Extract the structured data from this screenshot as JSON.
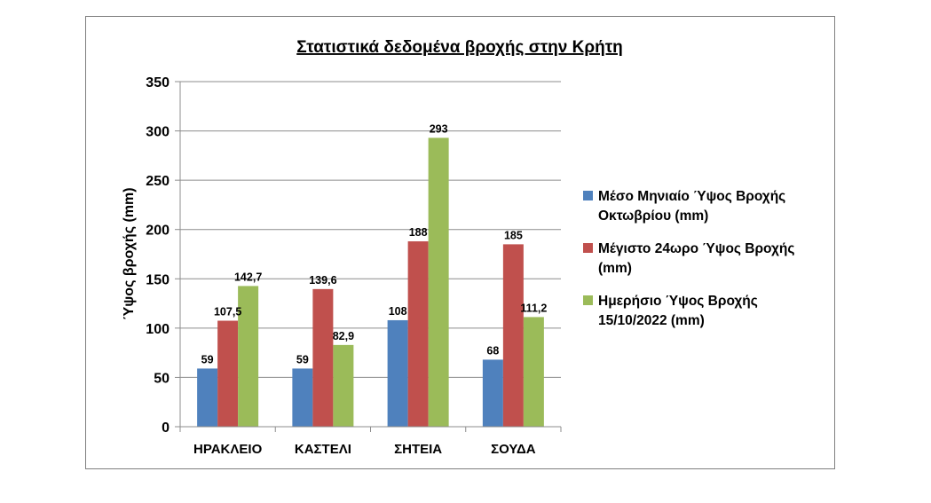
{
  "chart_data": {
    "type": "bar",
    "title": "Στατιστικά δεδομένα βροχής στην Κρήτη",
    "ylabel": "Ύψος βροχής (mm)",
    "xlabel": "",
    "ylim": [
      0,
      350
    ],
    "yticks": [
      0,
      50,
      100,
      150,
      200,
      250,
      300,
      350
    ],
    "grid": true,
    "legend_position": "right",
    "categories": [
      "ΗΡΑΚΛΕΙΟ",
      "ΚΑΣΤΕΛΙ",
      "ΣΗΤΕΙΑ",
      "ΣΟΥΔΑ"
    ],
    "series": [
      {
        "name": "Μέσο Μηνιαίο Ύψος Βροχής Οκτωβρίου (mm)",
        "legend_lines": [
          "Μέσο Μηνιαίο Ύψος Βροχής",
          "Οκτωβρίου (mm)"
        ],
        "color": "#4F81BD",
        "values": [
          59,
          59,
          108,
          68
        ],
        "labels": [
          "59",
          "59",
          "108",
          "68"
        ]
      },
      {
        "name": "Μέγιστο 24ωρο Ύψος Βροχής (mm)",
        "legend_lines": [
          "Μέγιστο 24ωρο Ύψος Βροχής",
          "(mm)"
        ],
        "color": "#C0504D",
        "values": [
          107.5,
          139.6,
          188,
          185
        ],
        "labels": [
          "107,5",
          "139,6",
          "188",
          "185"
        ]
      },
      {
        "name": "Ημερήσιο Ύψος Βροχής 15/10/2022 (mm)",
        "legend_lines": [
          "Ημερήσιο Ύψος Βροχής",
          "15/10/2022 (mm)"
        ],
        "color": "#9BBB59",
        "values": [
          142.7,
          82.9,
          293,
          111.2
        ],
        "labels": [
          "142,7",
          "82,9",
          "293",
          "111,2"
        ]
      }
    ]
  }
}
